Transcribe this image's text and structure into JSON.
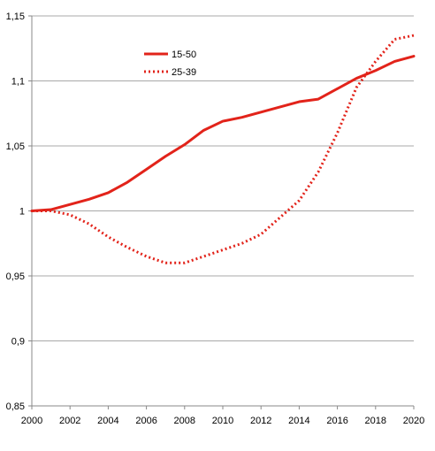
{
  "chart_data": {
    "type": "line",
    "title": "",
    "xlabel": "",
    "ylabel": "",
    "xlim": [
      2000,
      2020
    ],
    "ylim": [
      0.85,
      1.15
    ],
    "x_ticks": [
      2000,
      2002,
      2004,
      2006,
      2008,
      2010,
      2012,
      2014,
      2016,
      2018,
      2020
    ],
    "x_tick_labels": [
      "2000",
      "2002",
      "2004",
      "2006",
      "2008",
      "2010",
      "2012",
      "2014",
      "2016",
      "2018",
      "2020"
    ],
    "y_ticks": [
      0.85,
      0.9,
      0.95,
      1.0,
      1.05,
      1.1,
      1.15
    ],
    "y_tick_labels": [
      "0,85",
      "0,9",
      "0,95",
      "1",
      "1,05",
      "1,1",
      "1,15"
    ],
    "grid": "horizontal",
    "legend_position": "top-left",
    "x": [
      2000,
      2001,
      2002,
      2003,
      2004,
      2005,
      2006,
      2007,
      2008,
      2009,
      2010,
      2011,
      2012,
      2013,
      2014,
      2015,
      2016,
      2017,
      2018,
      2019,
      2020
    ],
    "series": [
      {
        "name": "15-50",
        "style": "solid",
        "color": "#e2231a",
        "values": [
          1.0,
          1.001,
          1.005,
          1.009,
          1.014,
          1.022,
          1.032,
          1.042,
          1.051,
          1.062,
          1.069,
          1.072,
          1.076,
          1.08,
          1.084,
          1.086,
          1.094,
          1.102,
          1.108,
          1.115,
          1.119
        ]
      },
      {
        "name": "25-39",
        "style": "dotted",
        "color": "#e2231a",
        "values": [
          1.0,
          1.0,
          0.997,
          0.99,
          0.98,
          0.972,
          0.965,
          0.96,
          0.96,
          0.965,
          0.97,
          0.975,
          0.982,
          0.995,
          1.008,
          1.03,
          1.06,
          1.095,
          1.115,
          1.132,
          1.135
        ]
      }
    ]
  }
}
